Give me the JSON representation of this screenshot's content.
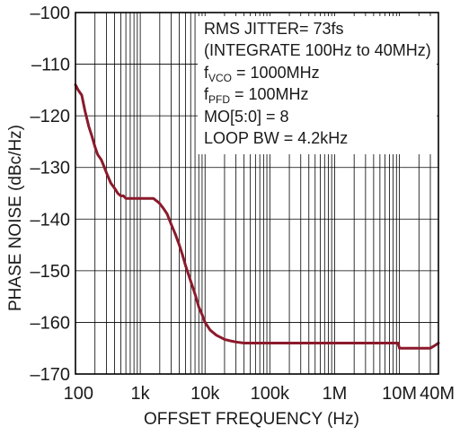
{
  "chart_data": {
    "type": "line",
    "title": "",
    "xlabel": "OFFSET FREQUENCY (Hz)",
    "ylabel": "PHASE NOISE (dBc/Hz)",
    "xscale": "log",
    "xlim": [
      100,
      40000000
    ],
    "ylim": [
      -170,
      -100
    ],
    "grid": true,
    "x_ticks": [
      100,
      1000,
      10000,
      100000,
      1000000,
      10000000,
      40000000
    ],
    "x_tick_labels": [
      "100",
      "1k",
      "10k",
      "100k",
      "1M",
      "10M",
      "40M"
    ],
    "y_ticks": [
      -100,
      -110,
      -120,
      -130,
      -140,
      -150,
      -160,
      -170
    ],
    "y_tick_labels": [
      "–100",
      "–110",
      "–120",
      "–130",
      "–140",
      "–150",
      "–160",
      "–170"
    ],
    "series_color": "#8b1a2b",
    "series": [
      {
        "name": "",
        "x": [
          100,
          110,
          125,
          140,
          160,
          180,
          200,
          220,
          250,
          280,
          300,
          350,
          400,
          450,
          500,
          550,
          600,
          650,
          700,
          800,
          900,
          1000,
          1200,
          1400,
          1600,
          1800,
          2000,
          2300,
          2600,
          3000,
          3500,
          4000,
          4500,
          5000,
          6000,
          7000,
          8000,
          9000,
          10000,
          12000,
          15000,
          18000,
          20000,
          25000,
          30000,
          40000,
          50000,
          70000,
          100000,
          200000,
          500000,
          1000000,
          1200000,
          2000000,
          5000000,
          8000000,
          9500000,
          10000000,
          20000000,
          30000000,
          35000000,
          40000000
        ],
        "y": [
          -114,
          -115,
          -116,
          -119,
          -122,
          -124,
          -126,
          -127.5,
          -128.5,
          -130,
          -131,
          -133,
          -134,
          -135,
          -135.5,
          -135.5,
          -136,
          -136,
          -136,
          -136,
          -136,
          -136,
          -136,
          -136,
          -136,
          -136.5,
          -137,
          -138,
          -139,
          -141,
          -143,
          -145,
          -147,
          -149,
          -152,
          -154.5,
          -157,
          -158.5,
          -160,
          -161.5,
          -162.5,
          -163,
          -163.3,
          -163.6,
          -163.8,
          -164,
          -164,
          -164,
          -164,
          -164,
          -164,
          -164,
          -164,
          -164,
          -164,
          -164,
          -164,
          -165,
          -165,
          -165,
          -164.5,
          -164
        ]
      }
    ]
  },
  "annotation": {
    "line1": "RMS JITTER= 73fs",
    "line2": "(INTEGRATE 100Hz to 40MHz)",
    "line3_main": "f",
    "line3_sub": "VCO",
    "line3_rest": " = 1000MHz",
    "line4_main": "f",
    "line4_sub": "PFD",
    "line4_rest": " = 100MHz",
    "line5": "MO[5:0]  = 8",
    "line6": "LOOP BW = 4.2kHz"
  }
}
